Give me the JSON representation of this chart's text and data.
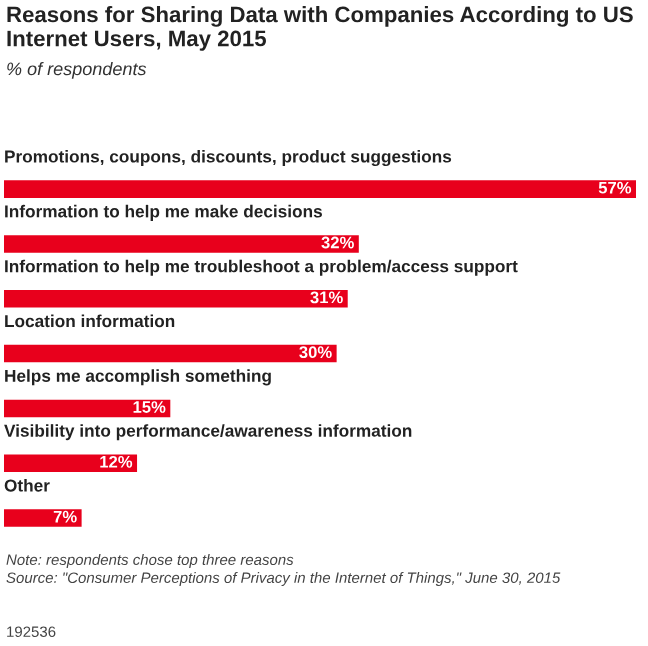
{
  "chart_data": {
    "type": "bar",
    "orientation": "horizontal",
    "title": "Reasons for Sharing Data with Companies According to US Internet Users, May 2015",
    "subtitle": "% of respondents",
    "categories": [
      "Promotions, coupons, discounts, product suggestions",
      "Information to help me make decisions",
      "Information to help me troubleshoot a problem/access support",
      "Location information",
      "Helps me accomplish something",
      "Visibility into performance/awareness information",
      "Other"
    ],
    "values": [
      57,
      32,
      31,
      30,
      15,
      12,
      7
    ],
    "value_labels": [
      "57%",
      "32%",
      "31%",
      "30%",
      "15%",
      "12%",
      "7%"
    ],
    "color": "#e8001c",
    "legend": false,
    "annotations": [
      "Note: respondents chose top three reasons",
      "Source: \"Consumer Perceptions of Privacy in the Internet of Things,\" June 30, 2015",
      "192536"
    ]
  }
}
